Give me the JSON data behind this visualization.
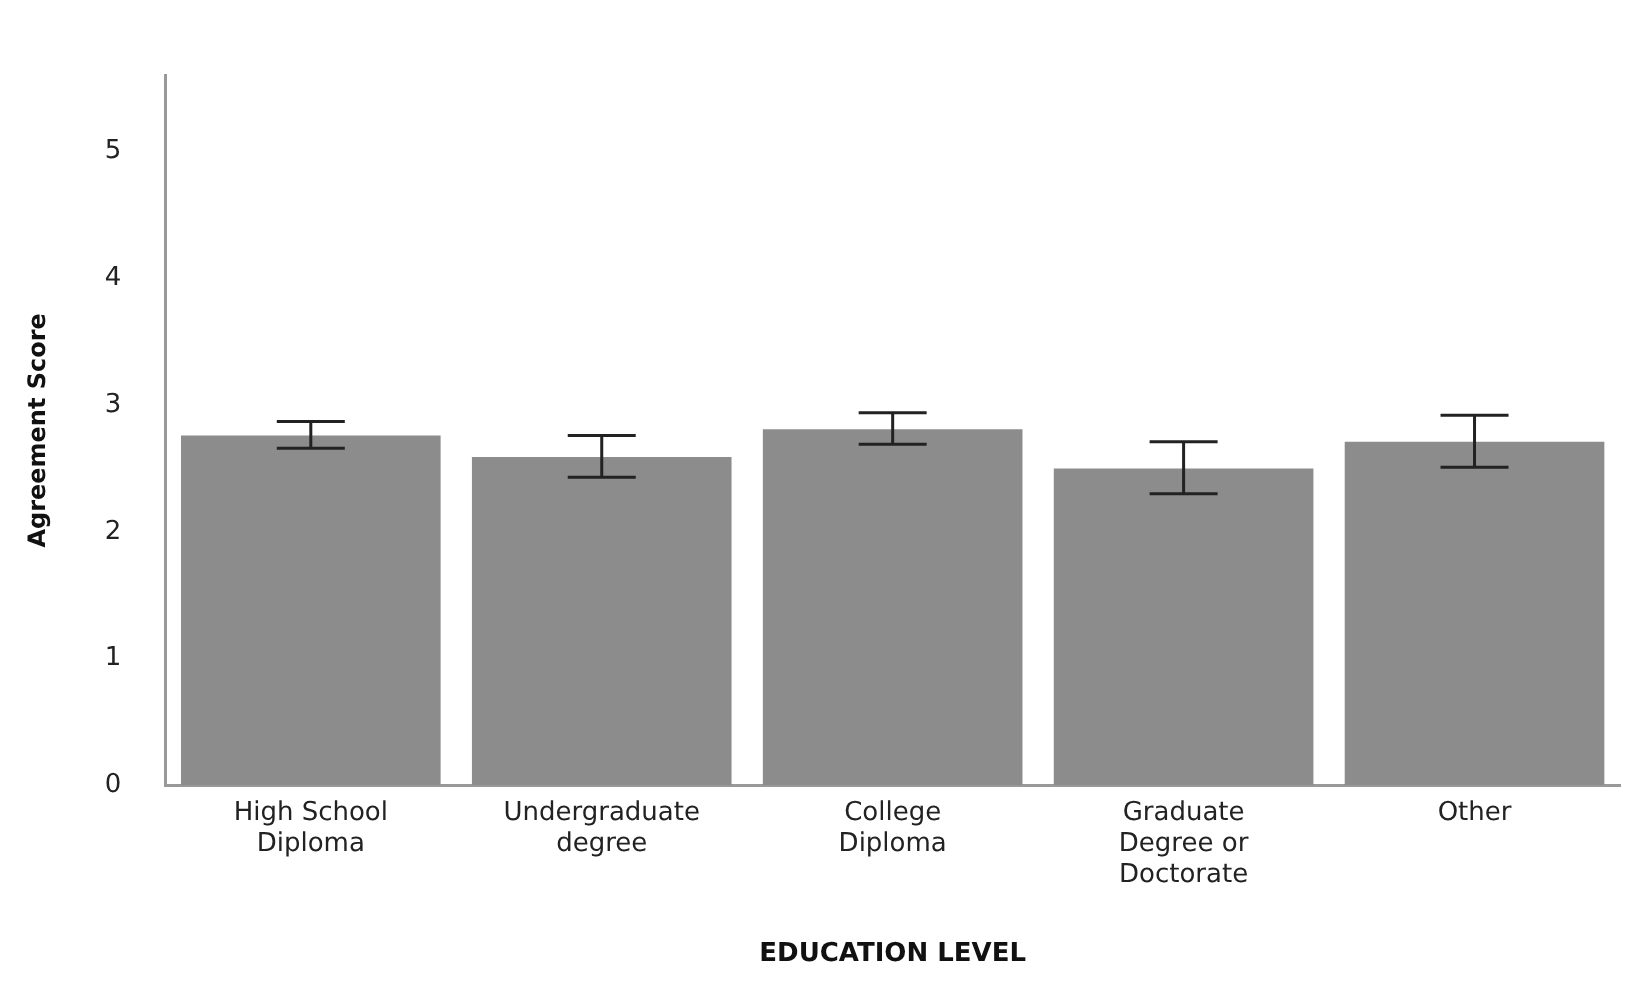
{
  "chart_data": {
    "type": "bar",
    "xlabel": "EDUCATION LEVEL",
    "ylabel": "Agreement Score",
    "categories": [
      "High School Diploma",
      "Undergraduate degree",
      "College Diploma",
      "Graduate Degree or Doctorate",
      "Other"
    ],
    "values": [
      2.76,
      2.59,
      2.81,
      2.5,
      2.71
    ],
    "errors": [
      [
        2.66,
        2.87
      ],
      [
        2.43,
        2.76
      ],
      [
        2.69,
        2.94
      ],
      [
        2.3,
        2.71
      ],
      [
        2.51,
        2.92
      ]
    ],
    "color": "#8c8c8c",
    "ylim": [
      0,
      5.6
    ],
    "yticks": [
      0,
      1,
      2,
      3,
      4,
      5
    ],
    "grid": false,
    "legend": false
  }
}
